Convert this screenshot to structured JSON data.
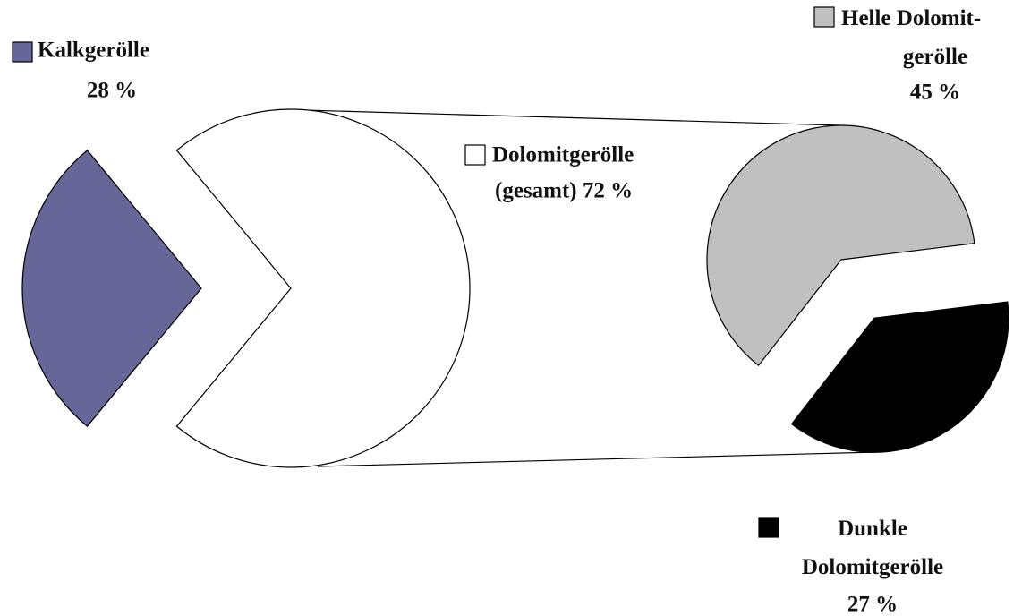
{
  "chart_data": {
    "type": "pie_of_pie",
    "categories": [
      "Kalkgerölle",
      "Dolomitgerölle"
    ],
    "values": [
      28,
      72
    ],
    "value_labels": [
      "28 %",
      "(gesamt) 72 %"
    ],
    "colors": [
      "#666699",
      "#ffffff"
    ],
    "secondary": {
      "categories": [
        "Helle Dolomit-\ngerölle",
        "Dunkle\nDolomitgerölle"
      ],
      "values": [
        45,
        27
      ],
      "value_labels": [
        "45 %",
        "27 %"
      ],
      "colors": [
        "#c0c0c0",
        "#000000"
      ]
    }
  }
}
